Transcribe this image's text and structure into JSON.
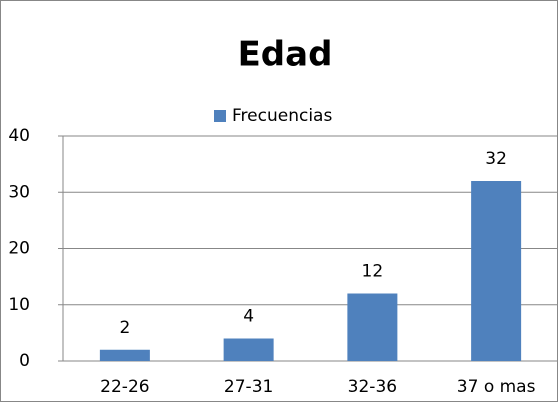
{
  "chart_data": {
    "type": "bar",
    "title": "Edad",
    "legend": "Frecuencias",
    "categories": [
      "22-26",
      "27-31",
      "32-36",
      "37 o mas"
    ],
    "values": [
      2,
      4,
      12,
      32
    ],
    "color": "#4f81bd",
    "ylim": [
      0,
      40
    ],
    "yticks": [
      0,
      10,
      20,
      30,
      40
    ],
    "grid": true
  }
}
